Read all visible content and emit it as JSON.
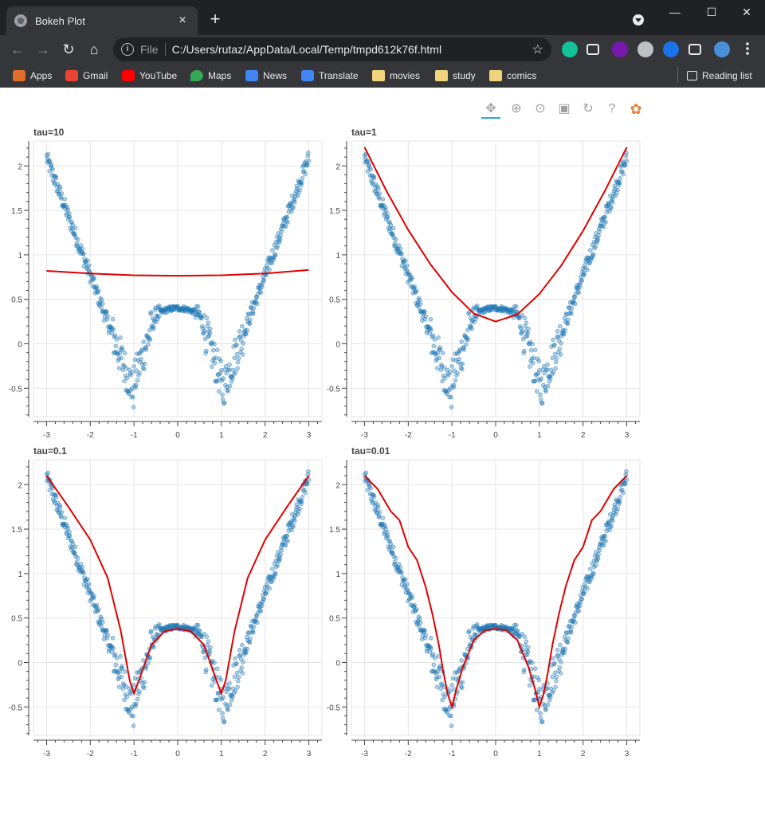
{
  "browser": {
    "tab_title": "Bokeh Plot",
    "tab_close": "×",
    "new_tab": "+",
    "window_controls": {
      "minimize": "—",
      "maximize": "☐",
      "close": "✕"
    },
    "nav": {
      "back": "←",
      "forward": "→",
      "reload": "↻",
      "home": "⌂"
    },
    "address": {
      "scheme": "File",
      "url": "C:/Users/rutaz/AppData/Local/Temp/tmpd612k76f.html",
      "star": "☆"
    },
    "extensions": [
      {
        "name": "grammarly-icon",
        "color": "#15c39a"
      },
      {
        "name": "tab-manager-icon",
        "color": "#e8eaed"
      },
      {
        "name": "onenote-icon",
        "color": "#7719aa"
      },
      {
        "name": "profile-ext-icon",
        "color": "#bdc1c6"
      },
      {
        "name": "wifi-ext-icon",
        "color": "#1a73e8"
      },
      {
        "name": "puzzle-icon",
        "color": "#e8eaed"
      },
      {
        "name": "avatar",
        "color": "#4a90d9"
      },
      {
        "name": "menu-kebab-icon",
        "color": "#e8eaed"
      }
    ],
    "bookmarks": [
      {
        "label": "Apps",
        "icon": "apps-grid-icon",
        "color": "#e06c2a"
      },
      {
        "label": "Gmail",
        "icon": "gmail-icon",
        "color": "#ea4335"
      },
      {
        "label": "YouTube",
        "icon": "youtube-icon",
        "color": "#ff0000"
      },
      {
        "label": "Maps",
        "icon": "maps-pin-icon",
        "color": "#34a853"
      },
      {
        "label": "News",
        "icon": "news-icon",
        "color": "#4285f4"
      },
      {
        "label": "Translate",
        "icon": "translate-icon",
        "color": "#4285f4"
      },
      {
        "label": "movies",
        "icon": "folder-icon",
        "color": "#f0d37a"
      },
      {
        "label": "study",
        "icon": "folder-icon",
        "color": "#f0d37a"
      },
      {
        "label": "comics",
        "icon": "folder-icon",
        "color": "#f0d37a"
      }
    ],
    "reading_list": "Reading list"
  },
  "bokeh_toolbar": [
    {
      "name": "pan-tool",
      "glyph": "✥",
      "active": true
    },
    {
      "name": "box-zoom-tool",
      "glyph": "⊕",
      "active": false
    },
    {
      "name": "wheel-zoom-tool",
      "glyph": "⊙",
      "active": false
    },
    {
      "name": "save-tool",
      "glyph": "▣",
      "active": false
    },
    {
      "name": "reset-tool",
      "glyph": "↻",
      "active": false
    },
    {
      "name": "help-tool",
      "glyph": "?",
      "active": false
    },
    {
      "name": "bokeh-logo",
      "glyph": "✿",
      "active": false
    }
  ],
  "chart_data": [
    {
      "type": "scatter",
      "title": "tau=10",
      "xlim": [
        -3.3,
        3.3
      ],
      "ylim": [
        -0.82,
        2.28
      ],
      "xticks": [
        -3,
        -2,
        -1,
        0,
        1,
        2,
        3
      ],
      "yticks": [
        -0.5,
        0,
        0.5,
        1,
        1.5,
        2
      ],
      "fit": {
        "x": [
          -3,
          -2,
          -1,
          0,
          1,
          2,
          3
        ],
        "y": [
          0.82,
          0.79,
          0.77,
          0.765,
          0.77,
          0.79,
          0.83
        ]
      },
      "fit_color": "#e00000",
      "point_color": "#1f77b4"
    },
    {
      "type": "scatter",
      "title": "tau=1",
      "xlim": [
        -3.3,
        3.3
      ],
      "ylim": [
        -0.82,
        2.28
      ],
      "xticks": [
        -3,
        -2,
        -1,
        0,
        1,
        2,
        3
      ],
      "yticks": [
        -0.5,
        0,
        0.5,
        1,
        1.5,
        2
      ],
      "fit": {
        "x": [
          -3,
          -2.5,
          -2,
          -1.5,
          -1,
          -0.5,
          0,
          0.5,
          1,
          1.5,
          2,
          2.5,
          3
        ],
        "y": [
          2.21,
          1.72,
          1.28,
          0.9,
          0.58,
          0.34,
          0.25,
          0.33,
          0.56,
          0.88,
          1.27,
          1.72,
          2.21
        ]
      },
      "fit_color": "#e00000",
      "point_color": "#1f77b4"
    },
    {
      "type": "scatter",
      "title": "tau=0.1",
      "xlim": [
        -3.3,
        3.3
      ],
      "ylim": [
        -0.82,
        2.28
      ],
      "xticks": [
        -3,
        -2,
        -1,
        0,
        1,
        2,
        3
      ],
      "yticks": [
        -0.5,
        0,
        0.5,
        1,
        1.5,
        2
      ],
      "fit": {
        "x": [
          -3,
          -2.5,
          -2,
          -1.6,
          -1.3,
          -1.1,
          -1,
          -0.85,
          -0.6,
          -0.3,
          0,
          0.3,
          0.6,
          0.85,
          1,
          1.1,
          1.3,
          1.6,
          2,
          2.5,
          3
        ],
        "y": [
          2.1,
          1.75,
          1.38,
          0.95,
          0.35,
          -0.2,
          -0.35,
          -0.15,
          0.2,
          0.35,
          0.38,
          0.35,
          0.2,
          -0.15,
          -0.35,
          -0.2,
          0.35,
          0.95,
          1.38,
          1.75,
          2.1
        ]
      },
      "fit_color": "#e00000",
      "point_color": "#1f77b4"
    },
    {
      "type": "scatter",
      "title": "tau=0.01",
      "xlim": [
        -3.3,
        3.3
      ],
      "ylim": [
        -0.82,
        2.28
      ],
      "xticks": [
        -3,
        -2,
        -1,
        0,
        1,
        2,
        3
      ],
      "yticks": [
        -0.5,
        0,
        0.5,
        1,
        1.5,
        2
      ],
      "fit": {
        "x": [
          -3,
          -2.7,
          -2.4,
          -2.2,
          -2,
          -1.8,
          -1.6,
          -1.45,
          -1.3,
          -1.2,
          -1.1,
          -1,
          -0.9,
          -0.75,
          -0.5,
          -0.25,
          0,
          0.25,
          0.5,
          0.75,
          0.9,
          1,
          1.1,
          1.2,
          1.3,
          1.45,
          1.6,
          1.8,
          2,
          2.2,
          2.4,
          2.7,
          3
        ],
        "y": [
          2.1,
          1.95,
          1.7,
          1.6,
          1.3,
          1.15,
          0.85,
          0.55,
          0.2,
          -0.1,
          -0.35,
          -0.5,
          -0.3,
          -0.05,
          0.25,
          0.36,
          0.38,
          0.36,
          0.25,
          -0.05,
          -0.3,
          -0.5,
          -0.35,
          -0.1,
          0.2,
          0.55,
          0.85,
          1.15,
          1.3,
          1.6,
          1.7,
          1.95,
          2.1
        ]
      },
      "fit_color": "#e00000",
      "point_color": "#1f77b4"
    }
  ]
}
